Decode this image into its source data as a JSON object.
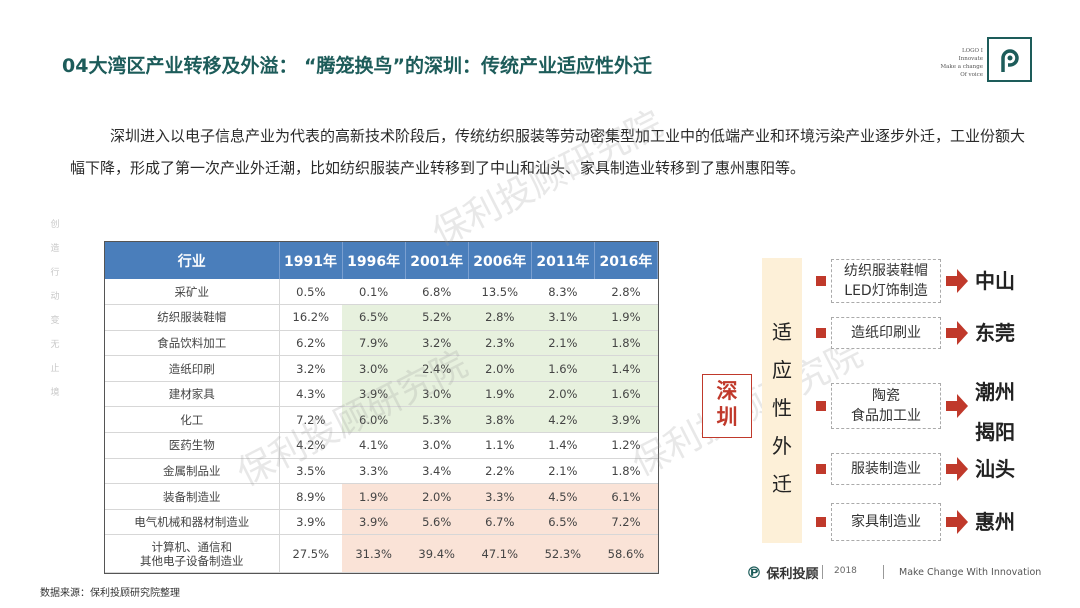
{
  "title": "04大湾区产业转移及外溢： “腾笼换鸟”的深圳：传统产业适应性外迁",
  "logo": {
    "lines": [
      "LOGO I",
      "Innovate",
      "Make a change",
      "Of voice"
    ]
  },
  "paragraph": "深圳进入以电子信息产业为代表的高新技术阶段后，传统纺织服装等劳动密集型加工业中的低端产业和环境污染产业逐步外迁，工业份额大幅下降，形成了第一次产业外迁潮，比如纺织服装产业转移到了中山和汕头、家具制造业转移到了惠州惠阳等。",
  "side_motto": [
    "创",
    "造",
    "行",
    "动",
    "变",
    "无",
    "止",
    "境"
  ],
  "watermark": "保利投顾研究院",
  "table": {
    "headers": [
      "行业",
      "1991年",
      "1996年",
      "2001年",
      "2006年",
      "2011年",
      "2016年"
    ],
    "rows": [
      {
        "name": "采矿业",
        "values": [
          "0.5%",
          "0.1%",
          "6.8%",
          "13.5%",
          "8.3%",
          "2.8%"
        ],
        "shade": ""
      },
      {
        "name": "纺织服装鞋帽",
        "values": [
          "16.2%",
          "6.5%",
          "5.2%",
          "2.8%",
          "3.1%",
          "1.9%"
        ],
        "shade": "g"
      },
      {
        "name": "食品饮料加工",
        "values": [
          "6.2%",
          "7.9%",
          "3.2%",
          "2.3%",
          "2.1%",
          "1.8%"
        ],
        "shade": "g"
      },
      {
        "name": "造纸印刷",
        "values": [
          "3.2%",
          "3.0%",
          "2.4%",
          "2.0%",
          "1.6%",
          "1.4%"
        ],
        "shade": "g"
      },
      {
        "name": "建材家具",
        "values": [
          "4.3%",
          "3.9%",
          "3.0%",
          "1.9%",
          "2.0%",
          "1.6%"
        ],
        "shade": "g"
      },
      {
        "name": "化工",
        "values": [
          "7.2%",
          "6.0%",
          "5.3%",
          "3.8%",
          "4.2%",
          "3.9%"
        ],
        "shade": "g"
      },
      {
        "name": "医药生物",
        "values": [
          "4.2%",
          "4.1%",
          "3.0%",
          "1.1%",
          "1.4%",
          "1.2%"
        ],
        "shade": ""
      },
      {
        "name": "金属制品业",
        "values": [
          "3.5%",
          "3.3%",
          "3.4%",
          "2.2%",
          "2.1%",
          "1.8%"
        ],
        "shade": ""
      },
      {
        "name": "装备制造业",
        "values": [
          "8.9%",
          "1.9%",
          "2.0%",
          "3.3%",
          "4.5%",
          "6.1%"
        ],
        "shade": "p"
      },
      {
        "name": "电气机械和器材制造业",
        "values": [
          "3.9%",
          "3.9%",
          "5.6%",
          "6.7%",
          "6.5%",
          "7.2%"
        ],
        "shade": "p"
      },
      {
        "name": "计算机、通信和\n其他电子设备制造业",
        "values": [
          "27.5%",
          "31.3%",
          "39.4%",
          "47.1%",
          "52.3%",
          "58.6%"
        ],
        "shade": "p"
      }
    ]
  },
  "source": "数据来源：保利投顾研究院整理",
  "diagram": {
    "origin": "深圳",
    "vertical_label": [
      "适",
      "应",
      "性",
      "外",
      "迁"
    ],
    "items": [
      {
        "industry": "纺织服装鞋帽\nLED灯饰制造",
        "dest": "中山"
      },
      {
        "industry": "造纸印刷业",
        "dest": "东莞"
      },
      {
        "industry": "陶瓷\n食品加工业",
        "dest": "潮州\n揭阳"
      },
      {
        "industry": "服装制造业",
        "dest": "汕头"
      },
      {
        "industry": "家具制造业",
        "dest": "惠州"
      }
    ]
  },
  "brand": {
    "name": "保利投顾",
    "year": "2018",
    "slogan": "Make Change With Innovation"
  }
}
